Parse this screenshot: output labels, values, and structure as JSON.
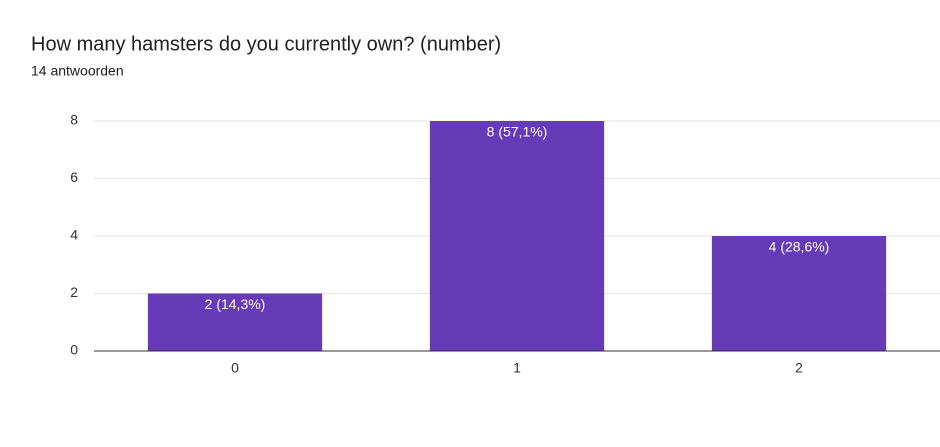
{
  "chart_data": {
    "type": "bar",
    "title": "How many hamsters do you currently own? (number)",
    "subtitle": "14 antwoorden",
    "categories": [
      "0",
      "1",
      "2"
    ],
    "values": [
      2,
      8,
      4
    ],
    "value_labels": [
      "2 (14,3%)",
      "8 (57,1%)",
      "4 (28,6%)"
    ],
    "color": "#673ab7",
    "ylim": [
      0,
      8
    ],
    "yticks": [
      0,
      2,
      4,
      6,
      8
    ],
    "grid": true
  }
}
